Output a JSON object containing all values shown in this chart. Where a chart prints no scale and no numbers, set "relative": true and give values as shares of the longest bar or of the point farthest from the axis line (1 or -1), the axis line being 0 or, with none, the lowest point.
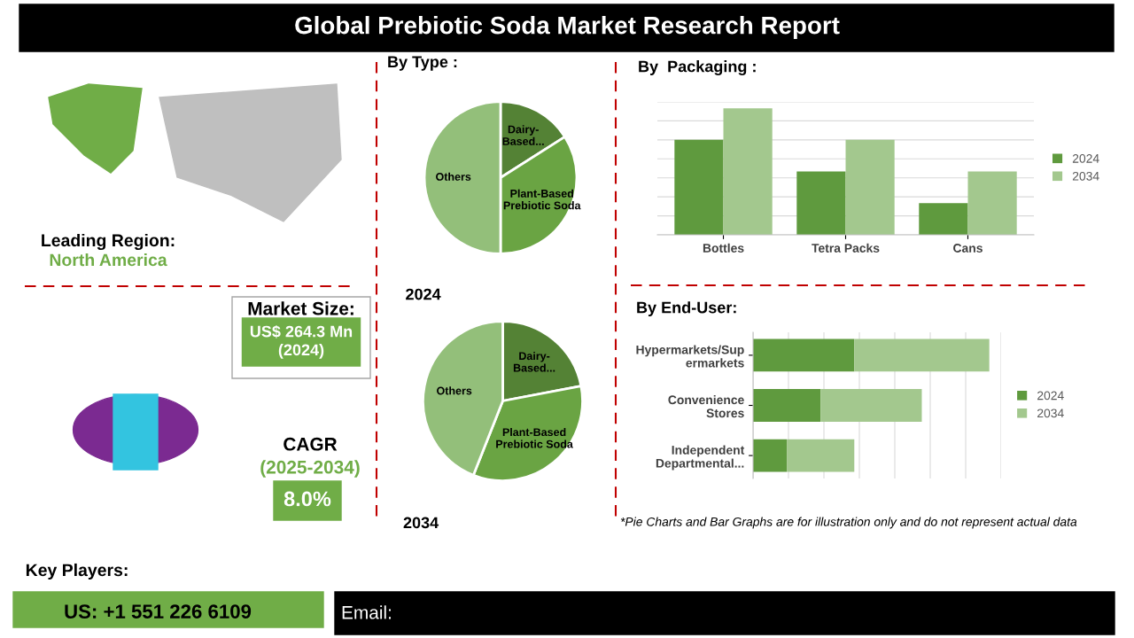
{
  "chart_data": [
    {
      "type": "other",
      "title": "Global Prebiotic Soda Market Research Report",
      "annotations": [
        "Leading Region:",
        "North America",
        "Market Size:",
        "US$ 264.3 Mn\n(2024)",
        "CAGR",
        "(2025-2034)",
        "8.0%",
        "Key Players:",
        "US: +1 551 226 6109",
        "Email:",
        "*Pie Charts and Bar Graphs are for illustration only and do not represent actual data"
      ]
    },
    {
      "type": "pie",
      "title": "By Type :",
      "xlabel": "2024",
      "categories": [
        "Dairy-\nBased...",
        "Plant-Based\nPrebiotic Soda",
        "Others"
      ],
      "values": [
        16,
        34,
        50
      ],
      "colors": [
        "#548235",
        "#6aa443",
        "#93bf7a"
      ]
    },
    {
      "type": "pie",
      "xlabel": "2034",
      "categories": [
        "Dairy-\nBased...",
        "Plant-Based\nPrebiotic Soda",
        "Others"
      ],
      "values": [
        22,
        34,
        44
      ],
      "colors": [
        "#548235",
        "#6aa443",
        "#93bf7a"
      ]
    },
    {
      "type": "bar",
      "title": "By  Packaging :",
      "relative": true,
      "categories": [
        "Bottles",
        "Tetra Packs",
        "Cans"
      ],
      "legend": "right",
      "grid": "y",
      "series": [
        {
          "name": "2024",
          "color": "#5f9a3e",
          "values": [
            0.75,
            0.5,
            0.25
          ]
        },
        {
          "name": "2034",
          "color": "#a3c88e",
          "values": [
            1,
            0.75,
            0.5
          ]
        }
      ]
    },
    {
      "type": "bar",
      "title": "By End-User:",
      "relative": true,
      "orientation": "horizontal",
      "stacked": true,
      "categories": [
        "Hypermarkets/Sup\nermarkets",
        "Convenience\nStores",
        "Independent\nDepartmental..."
      ],
      "legend": "right",
      "grid": "x",
      "series": [
        {
          "name": "2024",
          "color": "#5f9a3e",
          "values": [
            0.4286,
            0.2857,
            0.1429
          ]
        },
        {
          "name": "2034",
          "color": "#a3c88e",
          "values": [
            0.5714,
            0.4286,
            0.2857
          ]
        }
      ]
    }
  ]
}
